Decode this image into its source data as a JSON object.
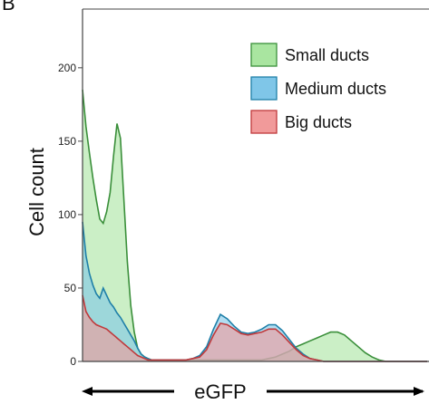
{
  "panel_label": "B",
  "chart_data": {
    "type": "area",
    "title": "",
    "xlabel": "eGFP",
    "ylabel": "Cell count",
    "ylim": [
      0,
      240
    ],
    "yticks": [
      0,
      50,
      100,
      150,
      200
    ],
    "xlim": [
      0,
      100
    ],
    "grid": false,
    "legend_position": "top-right",
    "x": [
      0,
      1,
      2,
      3,
      4,
      5,
      6,
      7,
      8,
      9,
      10,
      11,
      12,
      13,
      14,
      15,
      16,
      17,
      18,
      19,
      20,
      22,
      24,
      26,
      28,
      30,
      32,
      34,
      36,
      38,
      40,
      42,
      44,
      46,
      48,
      50,
      52,
      54,
      56,
      58,
      60,
      62,
      64,
      66,
      68,
      70,
      72,
      74,
      76,
      78,
      80,
      82,
      84,
      86,
      88,
      90,
      92,
      94,
      96,
      98,
      100
    ],
    "series": [
      {
        "name": "Small ducts",
        "color": "#3a8f3a",
        "fill": "#a9e5a0",
        "values": [
          185,
          160,
          142,
          125,
          110,
          97,
          94,
          102,
          115,
          140,
          162,
          152,
          110,
          68,
          38,
          20,
          9,
          5,
          3,
          2,
          1,
          1,
          1,
          1,
          1,
          1,
          1,
          1,
          1,
          1,
          1,
          1,
          1,
          1,
          1,
          1,
          1,
          2,
          3,
          5,
          7,
          10,
          12,
          14,
          16,
          18,
          20,
          20,
          18,
          14,
          10,
          6,
          3,
          1,
          0,
          0,
          0,
          0,
          0,
          0,
          0
        ]
      },
      {
        "name": "Medium ducts",
        "color": "#1e7fa8",
        "fill": "#7fc6e8",
        "values": [
          95,
          72,
          60,
          52,
          46,
          43,
          50,
          45,
          40,
          37,
          33,
          30,
          26,
          22,
          18,
          14,
          9,
          5,
          3,
          2,
          1,
          1,
          1,
          1,
          1,
          1,
          2,
          4,
          10,
          22,
          32,
          29,
          24,
          20,
          19,
          20,
          22,
          25,
          25,
          21,
          15,
          9,
          5,
          2,
          1,
          0,
          0,
          0,
          0,
          0,
          0,
          0,
          0,
          0,
          0,
          0,
          0,
          0,
          0,
          0,
          0
        ]
      },
      {
        "name": "Big ducts",
        "color": "#c0393b",
        "fill": "#f19a9a",
        "values": [
          45,
          34,
          30,
          27,
          25,
          24,
          23,
          22,
          20,
          18,
          16,
          14,
          12,
          10,
          8,
          6,
          4,
          3,
          2,
          1,
          1,
          1,
          1,
          1,
          1,
          1,
          2,
          3,
          8,
          18,
          26,
          25,
          22,
          19,
          18,
          19,
          20,
          22,
          22,
          18,
          13,
          8,
          4,
          2,
          1,
          0,
          0,
          0,
          0,
          0,
          0,
          0,
          0,
          0,
          0,
          0,
          0,
          0,
          0,
          0,
          0
        ]
      }
    ]
  }
}
